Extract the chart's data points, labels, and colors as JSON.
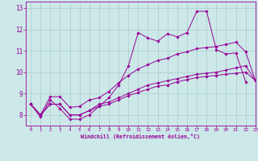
{
  "background_color": "#cce8e8",
  "line_color": "#990099",
  "grid_color": "#aacccc",
  "xlim": [
    -0.5,
    23
  ],
  "ylim": [
    7.5,
    13.3
  ],
  "xticks": [
    0,
    1,
    2,
    3,
    4,
    5,
    6,
    7,
    8,
    9,
    10,
    11,
    12,
    13,
    14,
    15,
    16,
    17,
    18,
    19,
    20,
    21,
    22,
    23
  ],
  "yticks": [
    8,
    9,
    10,
    11,
    12,
    13
  ],
  "xlabel": "Windchill (Refroidissement éolien,°C)",
  "series1_x": [
    0,
    1,
    2,
    3,
    4,
    5,
    6,
    7,
    8,
    9,
    10,
    11,
    12,
    13,
    14,
    15,
    16,
    17,
    18,
    19,
    20,
    21,
    22
  ],
  "series1_y": [
    8.5,
    7.9,
    8.7,
    8.3,
    7.8,
    7.8,
    8.0,
    8.4,
    8.8,
    9.4,
    10.3,
    11.85,
    11.6,
    11.45,
    11.8,
    11.65,
    11.85,
    12.85,
    12.85,
    11.05,
    10.85,
    10.9,
    9.55
  ],
  "series2_x": [
    0,
    1,
    2,
    3,
    4,
    5,
    6,
    7,
    8,
    9,
    10,
    11,
    12,
    13,
    14,
    15,
    16,
    17,
    18,
    19,
    20,
    21,
    22,
    23
  ],
  "series2_y": [
    8.5,
    8.0,
    8.85,
    8.85,
    8.35,
    8.4,
    8.7,
    8.8,
    9.1,
    9.5,
    9.85,
    10.15,
    10.35,
    10.55,
    10.65,
    10.85,
    10.95,
    11.1,
    11.15,
    11.2,
    11.3,
    11.4,
    10.95,
    9.6
  ],
  "series3_x": [
    0,
    1,
    2,
    3,
    4,
    5,
    6,
    7,
    8,
    9,
    10,
    11,
    12,
    13,
    14,
    15,
    16,
    17,
    18,
    19,
    20,
    21,
    22,
    23
  ],
  "series3_y": [
    8.5,
    8.0,
    8.5,
    8.5,
    8.0,
    8.0,
    8.2,
    8.5,
    8.6,
    8.8,
    9.0,
    9.2,
    9.4,
    9.5,
    9.6,
    9.7,
    9.8,
    9.9,
    9.95,
    10.0,
    10.1,
    10.2,
    10.3,
    9.6
  ],
  "series4_x": [
    0,
    1,
    2,
    3,
    4,
    5,
    6,
    7,
    8,
    9,
    10,
    11,
    12,
    13,
    14,
    15,
    16,
    17,
    18,
    19,
    20,
    21,
    22,
    23
  ],
  "series4_y": [
    8.5,
    8.0,
    8.5,
    8.5,
    8.0,
    8.0,
    8.2,
    8.4,
    8.5,
    8.7,
    8.9,
    9.05,
    9.2,
    9.35,
    9.4,
    9.55,
    9.65,
    9.75,
    9.8,
    9.85,
    9.9,
    9.95,
    10.0,
    9.6
  ]
}
